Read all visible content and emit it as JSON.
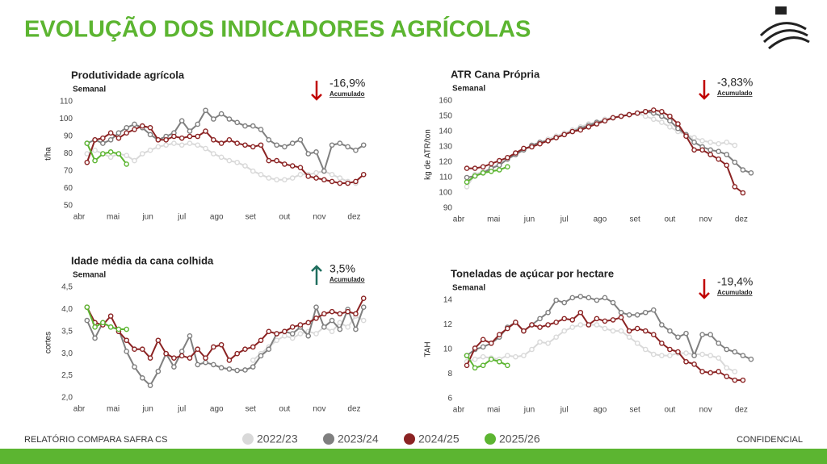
{
  "header": {
    "title": "EVOLUÇÃO DOS INDICADORES AGRÍCOLAS"
  },
  "footer": {
    "left": "RELATÓRIO COMPARA SAFRA CS",
    "right": "CONFIDENCIAL"
  },
  "chart_data": [
    {
      "type": "line",
      "title": "Produtividade agrícola",
      "subtitle": "Semanal",
      "annotation": "-16,9%",
      "annotation_note": "Acumulado",
      "arrow": "down",
      "arrow_color": "#c00000",
      "y_label": "t/ha",
      "ylim": [
        50,
        110
      ],
      "yticks": [
        50,
        60,
        70,
        80,
        90,
        100,
        110
      ],
      "xlim": [
        0,
        37
      ],
      "xticks": [
        {
          "value": 0,
          "label": "abr"
        },
        {
          "value": 4.3,
          "label": "mai"
        },
        {
          "value": 8.7,
          "label": "jun"
        },
        {
          "value": 13,
          "label": "jul"
        },
        {
          "value": 17.4,
          "label": "ago"
        },
        {
          "value": 21.7,
          "label": "set"
        },
        {
          "value": 26,
          "label": "out"
        },
        {
          "value": 30.4,
          "label": "nov"
        },
        {
          "value": 34.8,
          "label": "dez"
        }
      ],
      "x": [
        1,
        2,
        3,
        4,
        5,
        6,
        7,
        8,
        9,
        10,
        11,
        12,
        13,
        14,
        15,
        16,
        17,
        18,
        19,
        20,
        21,
        22,
        23,
        24,
        25,
        26,
        27,
        28,
        29,
        30,
        31,
        32,
        33,
        34,
        35,
        36
      ],
      "series": [
        {
          "name": "2022/23",
          "color": "#d9d9d9",
          "values": [
            80,
            82,
            80,
            78,
            80,
            79,
            76,
            80,
            82,
            84,
            85,
            86,
            85,
            86,
            85,
            83,
            80,
            78,
            76,
            75,
            73,
            70,
            68,
            66,
            65,
            65,
            66,
            68,
            68,
            69,
            70,
            68,
            66,
            64,
            63,
            null
          ]
        },
        {
          "name": "2023/24",
          "color": "#7f7f7f",
          "values": [
            86,
            88,
            86,
            88,
            92,
            95,
            97,
            95,
            91,
            88,
            90,
            92,
            99,
            93,
            97,
            105,
            100,
            103,
            100,
            98,
            96,
            96,
            94,
            88,
            85,
            84,
            86,
            88,
            80,
            81,
            70,
            85,
            86,
            84,
            82,
            85
          ]
        },
        {
          "name": "2024/25",
          "color": "#8b2323",
          "values": [
            75,
            88,
            89,
            92,
            89,
            92,
            94,
            96,
            95,
            88,
            88,
            90,
            89,
            90,
            90,
            93,
            88,
            86,
            88,
            86,
            85,
            84,
            85,
            76,
            76,
            74,
            73,
            72,
            67,
            66,
            65,
            64,
            63,
            63,
            64,
            68
          ]
        },
        {
          "name": "2025/26",
          "color": "#5cb531",
          "values": [
            86,
            76,
            80,
            81,
            80,
            74,
            null,
            null,
            null,
            null,
            null,
            null,
            null,
            null,
            null,
            null,
            null,
            null,
            null,
            null,
            null,
            null,
            null,
            null,
            null,
            null,
            null,
            null,
            null,
            null,
            null,
            null,
            null,
            null,
            null,
            null
          ]
        }
      ]
    },
    {
      "type": "line",
      "title": "ATR Cana Própria",
      "subtitle": "Semanal",
      "annotation": "-3,83%",
      "annotation_note": "Acumulado",
      "arrow": "down",
      "arrow_color": "#c00000",
      "y_label": "kg de ATR/ton",
      "ylim": [
        90,
        160
      ],
      "yticks": [
        90,
        100,
        110,
        120,
        130,
        140,
        150,
        160
      ],
      "xlim": [
        0,
        37
      ],
      "xticks": [
        {
          "value": 0,
          "label": "abr"
        },
        {
          "value": 4.3,
          "label": "mai"
        },
        {
          "value": 8.7,
          "label": "jun"
        },
        {
          "value": 13,
          "label": "jul"
        },
        {
          "value": 17.4,
          "label": "ago"
        },
        {
          "value": 21.7,
          "label": "set"
        },
        {
          "value": 26,
          "label": "out"
        },
        {
          "value": 30.4,
          "label": "nov"
        },
        {
          "value": 34.8,
          "label": "dez"
        }
      ],
      "x": [
        1,
        2,
        3,
        4,
        5,
        6,
        7,
        8,
        9,
        10,
        11,
        12,
        13,
        14,
        15,
        16,
        17,
        18,
        19,
        20,
        21,
        22,
        23,
        24,
        25,
        26,
        27,
        28,
        29,
        30,
        31,
        32,
        33,
        34,
        35,
        36
      ],
      "series": [
        {
          "name": "2022/23",
          "color": "#d9d9d9",
          "values": [
            104,
            112,
            114,
            116,
            119,
            122,
            125,
            128,
            131,
            133,
            135,
            137,
            139,
            141,
            143,
            145,
            146,
            148,
            149,
            150,
            151,
            152,
            150,
            148,
            146,
            143,
            140,
            138,
            136,
            134,
            133,
            132,
            133,
            131,
            null,
            null
          ]
        },
        {
          "name": "2023/24",
          "color": "#7f7f7f",
          "values": [
            110,
            111,
            113,
            116,
            118,
            122,
            125,
            128,
            131,
            133,
            134,
            136,
            138,
            140,
            142,
            144,
            146,
            147,
            149,
            150,
            151,
            152,
            153,
            152,
            150,
            147,
            142,
            138,
            133,
            130,
            128,
            127,
            125,
            120,
            115,
            113
          ]
        },
        {
          "name": "2024/25",
          "color": "#8b2323",
          "values": [
            116,
            116,
            117,
            119,
            121,
            123,
            126,
            129,
            130,
            132,
            134,
            136,
            138,
            140,
            141,
            143,
            145,
            147,
            149,
            150,
            151,
            152,
            153,
            154,
            153,
            150,
            145,
            137,
            128,
            128,
            125,
            122,
            118,
            104,
            100,
            null
          ]
        },
        {
          "name": "2025/26",
          "color": "#5cb531",
          "values": [
            107,
            111,
            113,
            114,
            115,
            117,
            null,
            null,
            null,
            null,
            null,
            null,
            null,
            null,
            null,
            null,
            null,
            null,
            null,
            null,
            null,
            null,
            null,
            null,
            null,
            null,
            null,
            null,
            null,
            null,
            null,
            null,
            null,
            null,
            null,
            null
          ]
        }
      ]
    },
    {
      "type": "line",
      "title": "Idade média da cana colhida",
      "subtitle": "Semanal",
      "annotation": "3,5%",
      "annotation_note": "Acumulado",
      "arrow": "up",
      "arrow_color": "#1f6e5e",
      "y_label": "cortes",
      "ylim": [
        2.0,
        4.5
      ],
      "yticks": [
        {
          "value": 2.0,
          "label": "2,0"
        },
        {
          "value": 2.5,
          "label": "2,5"
        },
        {
          "value": 3.0,
          "label": "3,0"
        },
        {
          "value": 3.5,
          "label": "3,5"
        },
        {
          "value": 4.0,
          "label": "4,0"
        },
        {
          "value": 4.5,
          "label": "4,5"
        }
      ],
      "xlim": [
        0,
        37
      ],
      "xticks": [
        {
          "value": 0,
          "label": "abr"
        },
        {
          "value": 4.3,
          "label": "mai"
        },
        {
          "value": 8.7,
          "label": "jun"
        },
        {
          "value": 13,
          "label": "jul"
        },
        {
          "value": 17.4,
          "label": "ago"
        },
        {
          "value": 21.7,
          "label": "set"
        },
        {
          "value": 26,
          "label": "out"
        },
        {
          "value": 30.4,
          "label": "nov"
        },
        {
          "value": 34.8,
          "label": "dez"
        }
      ],
      "x": [
        1,
        2,
        3,
        4,
        5,
        6,
        7,
        8,
        9,
        10,
        11,
        12,
        13,
        14,
        15,
        16,
        17,
        18,
        19,
        20,
        21,
        22,
        23,
        24,
        25,
        26,
        27,
        28,
        29,
        30,
        31,
        32,
        33,
        34,
        35,
        36
      ],
      "series": [
        {
          "name": "2022/23",
          "color": "#d9d9d9",
          "values": [
            null,
            null,
            null,
            null,
            null,
            null,
            null,
            null,
            null,
            null,
            null,
            null,
            null,
            null,
            null,
            null,
            null,
            null,
            null,
            null,
            null,
            2.85,
            3.0,
            3.15,
            3.3,
            3.4,
            3.35,
            3.45,
            3.5,
            3.45,
            3.6,
            3.5,
            3.7,
            3.6,
            3.85,
            3.75
          ]
        },
        {
          "name": "2023/24",
          "color": "#7f7f7f",
          "values": [
            3.75,
            3.35,
            3.7,
            3.6,
            3.55,
            3.05,
            2.7,
            2.45,
            2.28,
            2.6,
            3.0,
            2.7,
            3.05,
            3.4,
            2.75,
            2.8,
            2.75,
            2.68,
            2.65,
            2.62,
            2.63,
            2.7,
            2.95,
            3.1,
            3.45,
            3.5,
            3.45,
            3.6,
            3.4,
            4.05,
            3.6,
            3.75,
            3.55,
            4.0,
            3.55,
            4.05
          ]
        },
        {
          "name": "2024/25",
          "color": "#8b2323",
          "values": [
            4.05,
            3.7,
            3.65,
            3.85,
            3.5,
            3.3,
            3.1,
            3.1,
            2.9,
            3.3,
            3.0,
            2.9,
            2.95,
            2.9,
            3.1,
            2.9,
            3.15,
            3.2,
            2.85,
            3.0,
            3.1,
            3.15,
            3.3,
            3.5,
            3.45,
            3.5,
            3.6,
            3.65,
            3.7,
            3.8,
            3.9,
            3.95,
            3.9,
            3.95,
            3.9,
            4.25
          ]
        },
        {
          "name": "2025/26",
          "color": "#5cb531",
          "values": [
            4.05,
            3.6,
            3.7,
            3.6,
            3.55,
            3.55,
            null,
            null,
            null,
            null,
            null,
            null,
            null,
            null,
            null,
            null,
            null,
            null,
            null,
            null,
            null,
            null,
            null,
            null,
            null,
            null,
            null,
            null,
            null,
            null,
            null,
            null,
            null,
            null,
            null,
            null
          ]
        }
      ]
    },
    {
      "type": "line",
      "title": "Toneladas de açúcar por hectare",
      "subtitle": "Semanal",
      "annotation": "-19,4%",
      "annotation_note": "Acumulado",
      "arrow": "down",
      "arrow_color": "#c00000",
      "y_label": "TAH",
      "ylim": [
        6,
        14
      ],
      "yticks": [
        6,
        8,
        10,
        12,
        14
      ],
      "xlim": [
        0,
        37
      ],
      "xticks": [
        {
          "value": 0,
          "label": "abr"
        },
        {
          "value": 4.3,
          "label": "mai"
        },
        {
          "value": 8.7,
          "label": "jun"
        },
        {
          "value": 13,
          "label": "jul"
        },
        {
          "value": 17.4,
          "label": "ago"
        },
        {
          "value": 21.7,
          "label": "set"
        },
        {
          "value": 26,
          "label": "out"
        },
        {
          "value": 30.4,
          "label": "nov"
        },
        {
          "value": 34.8,
          "label": "dez"
        }
      ],
      "x": [
        1,
        2,
        3,
        4,
        5,
        6,
        7,
        8,
        9,
        10,
        11,
        12,
        13,
        14,
        15,
        16,
        17,
        18,
        19,
        20,
        21,
        22,
        23,
        24,
        25,
        26,
        27,
        28,
        29,
        30,
        31,
        32,
        33,
        34,
        35,
        36
      ],
      "series": [
        {
          "name": "2022/23",
          "color": "#d9d9d9",
          "values": [
            9.0,
            9.2,
            9.4,
            9.3,
            9.2,
            9.5,
            9.4,
            9.5,
            10.0,
            10.6,
            10.5,
            11.0,
            11.5,
            11.8,
            12.0,
            12.0,
            12.0,
            11.7,
            11.5,
            11.5,
            11.0,
            10.5,
            10.0,
            9.6,
            9.5,
            9.5,
            9.7,
            9.7,
            9.6,
            9.6,
            9.5,
            9.3,
            8.5,
            8.2,
            null,
            null
          ]
        },
        {
          "name": "2023/24",
          "color": "#7f7f7f",
          "values": [
            9.5,
            10.0,
            10.2,
            10.5,
            11.0,
            11.8,
            12.2,
            11.5,
            12.0,
            12.5,
            13.0,
            14.0,
            13.8,
            14.2,
            14.3,
            14.2,
            14.0,
            14.2,
            13.8,
            13.0,
            12.8,
            12.8,
            13.0,
            13.2,
            12.0,
            11.5,
            11.0,
            11.3,
            9.5,
            11.2,
            11.2,
            10.5,
            10.0,
            9.8,
            9.5,
            9.2
          ]
        },
        {
          "name": "2024/25",
          "color": "#8b2323",
          "values": [
            8.7,
            10.1,
            10.8,
            10.5,
            11.2,
            11.7,
            12.2,
            11.5,
            12.0,
            11.8,
            12.0,
            12.2,
            12.5,
            12.4,
            13.0,
            12.0,
            12.5,
            12.3,
            12.4,
            12.6,
            11.5,
            11.7,
            11.5,
            11.2,
            10.5,
            10.0,
            9.8,
            9.0,
            8.8,
            8.2,
            8.1,
            8.2,
            7.8,
            7.5,
            7.5,
            null
          ]
        },
        {
          "name": "2025/26",
          "color": "#5cb531",
          "values": [
            9.5,
            8.5,
            8.7,
            9.2,
            9.0,
            8.7,
            null,
            null,
            null,
            null,
            null,
            null,
            null,
            null,
            null,
            null,
            null,
            null,
            null,
            null,
            null,
            null,
            null,
            null,
            null,
            null,
            null,
            null,
            null,
            null,
            null,
            null,
            null,
            null,
            null,
            null
          ]
        }
      ]
    }
  ]
}
